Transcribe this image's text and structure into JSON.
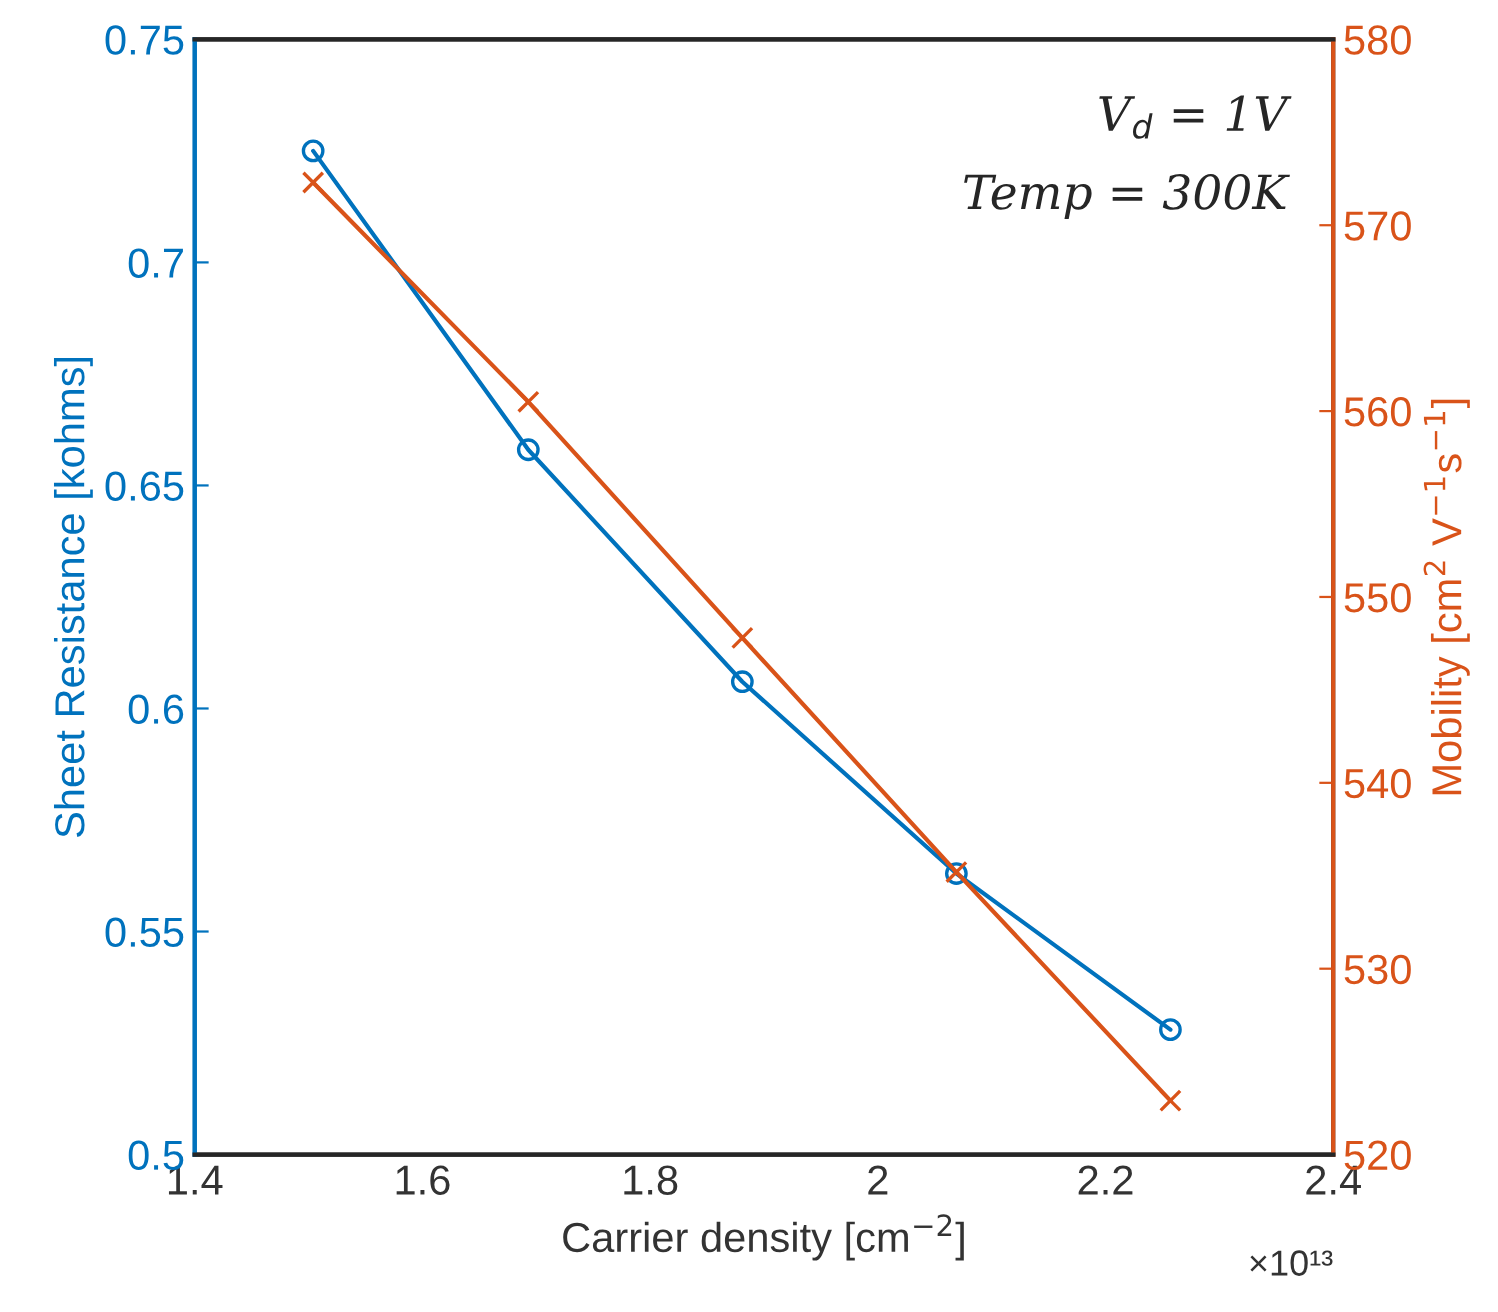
{
  "chart_data": {
    "type": "line",
    "xlabel": "Carrier density [cm$^{−2}$]",
    "ylabel": "Sheet Resistance [kohms]",
    "y2label": "Mobility [cm$^{2}$ V$^{−1}$s$^{−1}$]",
    "x": [
      1.504,
      1.693,
      1.881,
      2.069,
      2.257
    ],
    "series": [
      {
        "color": "#0072bd",
        "marker": "circle",
        "values": [
          0.725,
          0.658,
          0.606,
          0.563,
          0.528
        ]
      },
      {
        "color": "#d95319",
        "marker": "cross",
        "axis": "y2",
        "values": [
          572.3,
          560.5,
          547.8,
          535.2,
          522.9
        ]
      }
    ],
    "xlim": [
      1.4,
      2.4
    ],
    "xticks": [
      1.4,
      1.6,
      1.8,
      2,
      2.2,
      2.4
    ],
    "ylim": [
      0.5,
      0.75
    ],
    "yticks": [
      0.5,
      0.55,
      0.6,
      0.65,
      0.7,
      0.75
    ],
    "y2lim": [
      520,
      580
    ],
    "y2ticks": [
      520,
      530,
      540,
      550,
      560,
      570,
      580
    ],
    "annotations": [
      "V$_{d}$ = 1V",
      "Temp = 300K",
      "×10¹³"
    ],
    "grid": false,
    "legend": false
  }
}
